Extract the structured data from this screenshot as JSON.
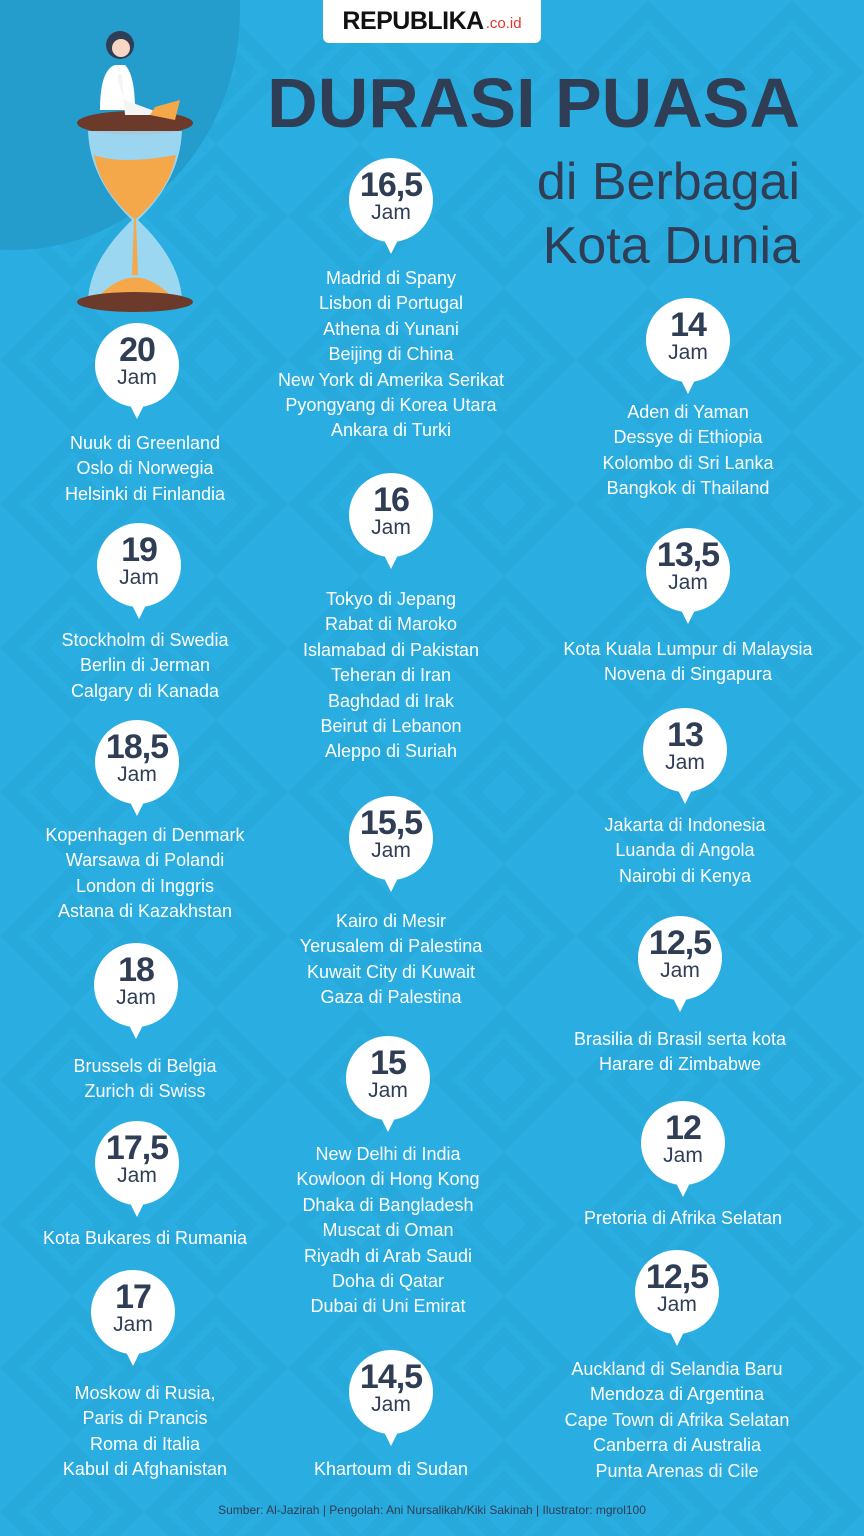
{
  "logo": {
    "brand": "REPUBLIKA",
    "domain": ".co.id"
  },
  "title": {
    "line1": "DURASI PUASA",
    "line2": "di Berbagai",
    "line3": "Kota Dunia"
  },
  "unit": "Jam",
  "colors": {
    "background": "#2aaee1",
    "title": "#2f3d55",
    "bubble": "#ffffff",
    "text": "#ffffff",
    "logo_accent": "#e4322b"
  },
  "groups": [
    {
      "hours": "20",
      "cities": [
        "Nuuk di Greenland",
        "Oslo di Norwegia",
        "Helsinki di Finlandia"
      ]
    },
    {
      "hours": "19",
      "cities": [
        "Stockholm di Swedia",
        "Berlin di Jerman",
        "Calgary di Kanada"
      ]
    },
    {
      "hours": "18,5",
      "cities": [
        "Kopenhagen di Denmark",
        "Warsawa di Polandi",
        "London di Inggris",
        "Astana di Kazakhstan"
      ]
    },
    {
      "hours": "18",
      "cities": [
        "Brussels di Belgia",
        "Zurich di Swiss"
      ]
    },
    {
      "hours": "17,5",
      "cities": [
        "Kota Bukares di Rumania"
      ]
    },
    {
      "hours": "17",
      "cities": [
        "Moskow di Rusia,",
        "Paris di Prancis",
        "Roma di Italia",
        "Kabul di Afghanistan"
      ]
    },
    {
      "hours": "16,5",
      "cities": [
        "Madrid di Spany",
        "Lisbon di Portugal",
        "Athena di Yunani",
        "Beijing di China",
        "New York di Amerika Serikat",
        "Pyongyang di Korea Utara",
        "Ankara di Turki"
      ]
    },
    {
      "hours": "16",
      "cities": [
        "Tokyo di Jepang",
        "Rabat di Maroko",
        "Islamabad di Pakistan",
        "Teheran di Iran",
        "Baghdad di Irak",
        "Beirut di Lebanon",
        "Aleppo di Suriah"
      ]
    },
    {
      "hours": "15,5",
      "cities": [
        "Kairo di Mesir",
        "Yerusalem di Palestina",
        "Kuwait City di Kuwait",
        "Gaza di Palestina"
      ]
    },
    {
      "hours": "15",
      "cities": [
        "New Delhi di India",
        "Kowloon di Hong Kong",
        "Dhaka di Bangladesh",
        "Muscat di Oman",
        "Riyadh di Arab Saudi",
        "Doha di Qatar",
        "Dubai di Uni Emirat"
      ]
    },
    {
      "hours": "14,5",
      "cities": [
        "Khartoum di Sudan"
      ]
    },
    {
      "hours": "14",
      "cities": [
        "Aden di Yaman",
        "Dessye di Ethiopia",
        "Kolombo di Sri Lanka",
        "Bangkok di Thailand"
      ]
    },
    {
      "hours": "13,5",
      "cities": [
        "Kota Kuala Lumpur di Malaysia",
        "Novena di Singapura"
      ]
    },
    {
      "hours": "13",
      "cities": [
        "Jakarta di Indonesia",
        "Luanda di Angola",
        "Nairobi di Kenya"
      ]
    },
    {
      "hours": "12,5",
      "cities": [
        "Brasilia di Brasil serta kota",
        "Harare di Zimbabwe"
      ]
    },
    {
      "hours": "12",
      "cities": [
        "Pretoria di Afrika Selatan"
      ]
    },
    {
      "hours": "12,5",
      "cities": [
        "Auckland di Selandia Baru",
        "Mendoza di Argentina",
        "Cape Town di Afrika Selatan",
        "Canberra di Australia",
        "Punta Arenas di Cile"
      ]
    }
  ],
  "footer": "Sumber: Al-Jazirah | Pengolah: Ani Nursalikah/Kiki Sakinah | Ilustrator: mgrol100"
}
